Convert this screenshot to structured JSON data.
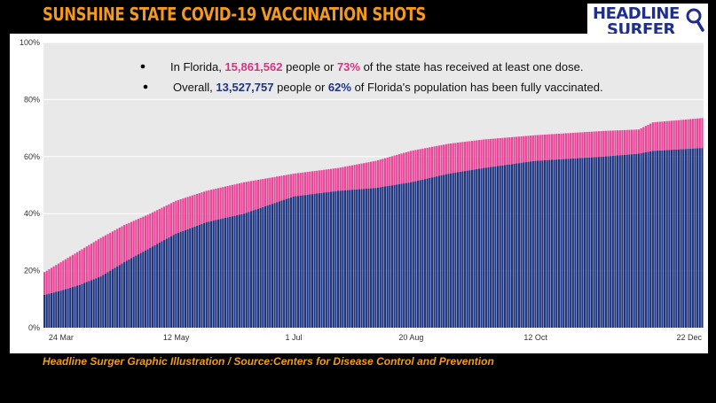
{
  "header": {
    "title": "SUNSHINE STATE COVID-19 VACCINATION SHOTS",
    "logo_line1": "HEADLINE",
    "logo_line2": "SURFER"
  },
  "caption": "Headline Surger Graphic Illustration / Source:Centers for Disease Control and Prevention",
  "colors": {
    "one_dose": "#e8479a",
    "fully": "#1e3582",
    "accent_title": "#f39a1e",
    "plot_bg": "#e9e9e9"
  },
  "annotation": {
    "line1": {
      "pre": "In Florida, ",
      "count": "15,861,562",
      "mid": " people or ",
      "pct": "73%",
      "post": " of the state has received at least one dose."
    },
    "line2": {
      "pre": "Overall, ",
      "count": "13,527,757",
      "mid": " people or ",
      "pct": "62%",
      "post": " of Florida's population has been fully vaccinated."
    }
  },
  "chart_data": {
    "type": "bar",
    "stacked": true,
    "x_range": [
      "2021-03-17",
      "2021-12-22"
    ],
    "x_ticks": [
      "24 Mar",
      "12 May",
      "1 Jul",
      "20 Aug",
      "12 Oct",
      "22 Dec"
    ],
    "y_ticks": [
      "0%",
      "20%",
      "40%",
      "60%",
      "80%",
      "100%"
    ],
    "ylim": [
      0,
      100
    ],
    "grid": true,
    "series": [
      {
        "key": "fully",
        "points": [
          [
            "2021-03-17",
            11.5
          ],
          [
            "2021-03-24",
            13
          ],
          [
            "2021-04-01",
            15
          ],
          [
            "2021-04-10",
            18
          ],
          [
            "2021-04-20",
            23
          ],
          [
            "2021-05-01",
            28
          ],
          [
            "2021-05-12",
            33
          ],
          [
            "2021-05-25",
            37
          ],
          [
            "2021-06-10",
            40
          ],
          [
            "2021-07-01",
            46
          ],
          [
            "2021-07-20",
            48
          ],
          [
            "2021-08-05",
            49
          ],
          [
            "2021-08-20",
            51
          ],
          [
            "2021-09-05",
            54
          ],
          [
            "2021-09-20",
            56
          ],
          [
            "2021-10-12",
            58.5
          ],
          [
            "2021-11-10",
            60
          ],
          [
            "2021-11-25",
            61
          ],
          [
            "2021-12-01",
            62
          ],
          [
            "2021-12-22",
            63
          ]
        ]
      },
      {
        "key": "one_dose",
        "points": [
          [
            "2021-03-17",
            19.5
          ],
          [
            "2021-03-24",
            23
          ],
          [
            "2021-04-01",
            27
          ],
          [
            "2021-04-10",
            31.5
          ],
          [
            "2021-04-20",
            36
          ],
          [
            "2021-05-01",
            40
          ],
          [
            "2021-05-12",
            44.5
          ],
          [
            "2021-05-25",
            48
          ],
          [
            "2021-06-10",
            51
          ],
          [
            "2021-07-01",
            54
          ],
          [
            "2021-07-20",
            56
          ],
          [
            "2021-08-05",
            58.5
          ],
          [
            "2021-08-20",
            62
          ],
          [
            "2021-09-05",
            64.5
          ],
          [
            "2021-09-20",
            66
          ],
          [
            "2021-10-12",
            67.5
          ],
          [
            "2021-11-10",
            69
          ],
          [
            "2021-11-25",
            69.5
          ],
          [
            "2021-12-01",
            72
          ],
          [
            "2021-12-22",
            73.5
          ]
        ]
      }
    ]
  }
}
